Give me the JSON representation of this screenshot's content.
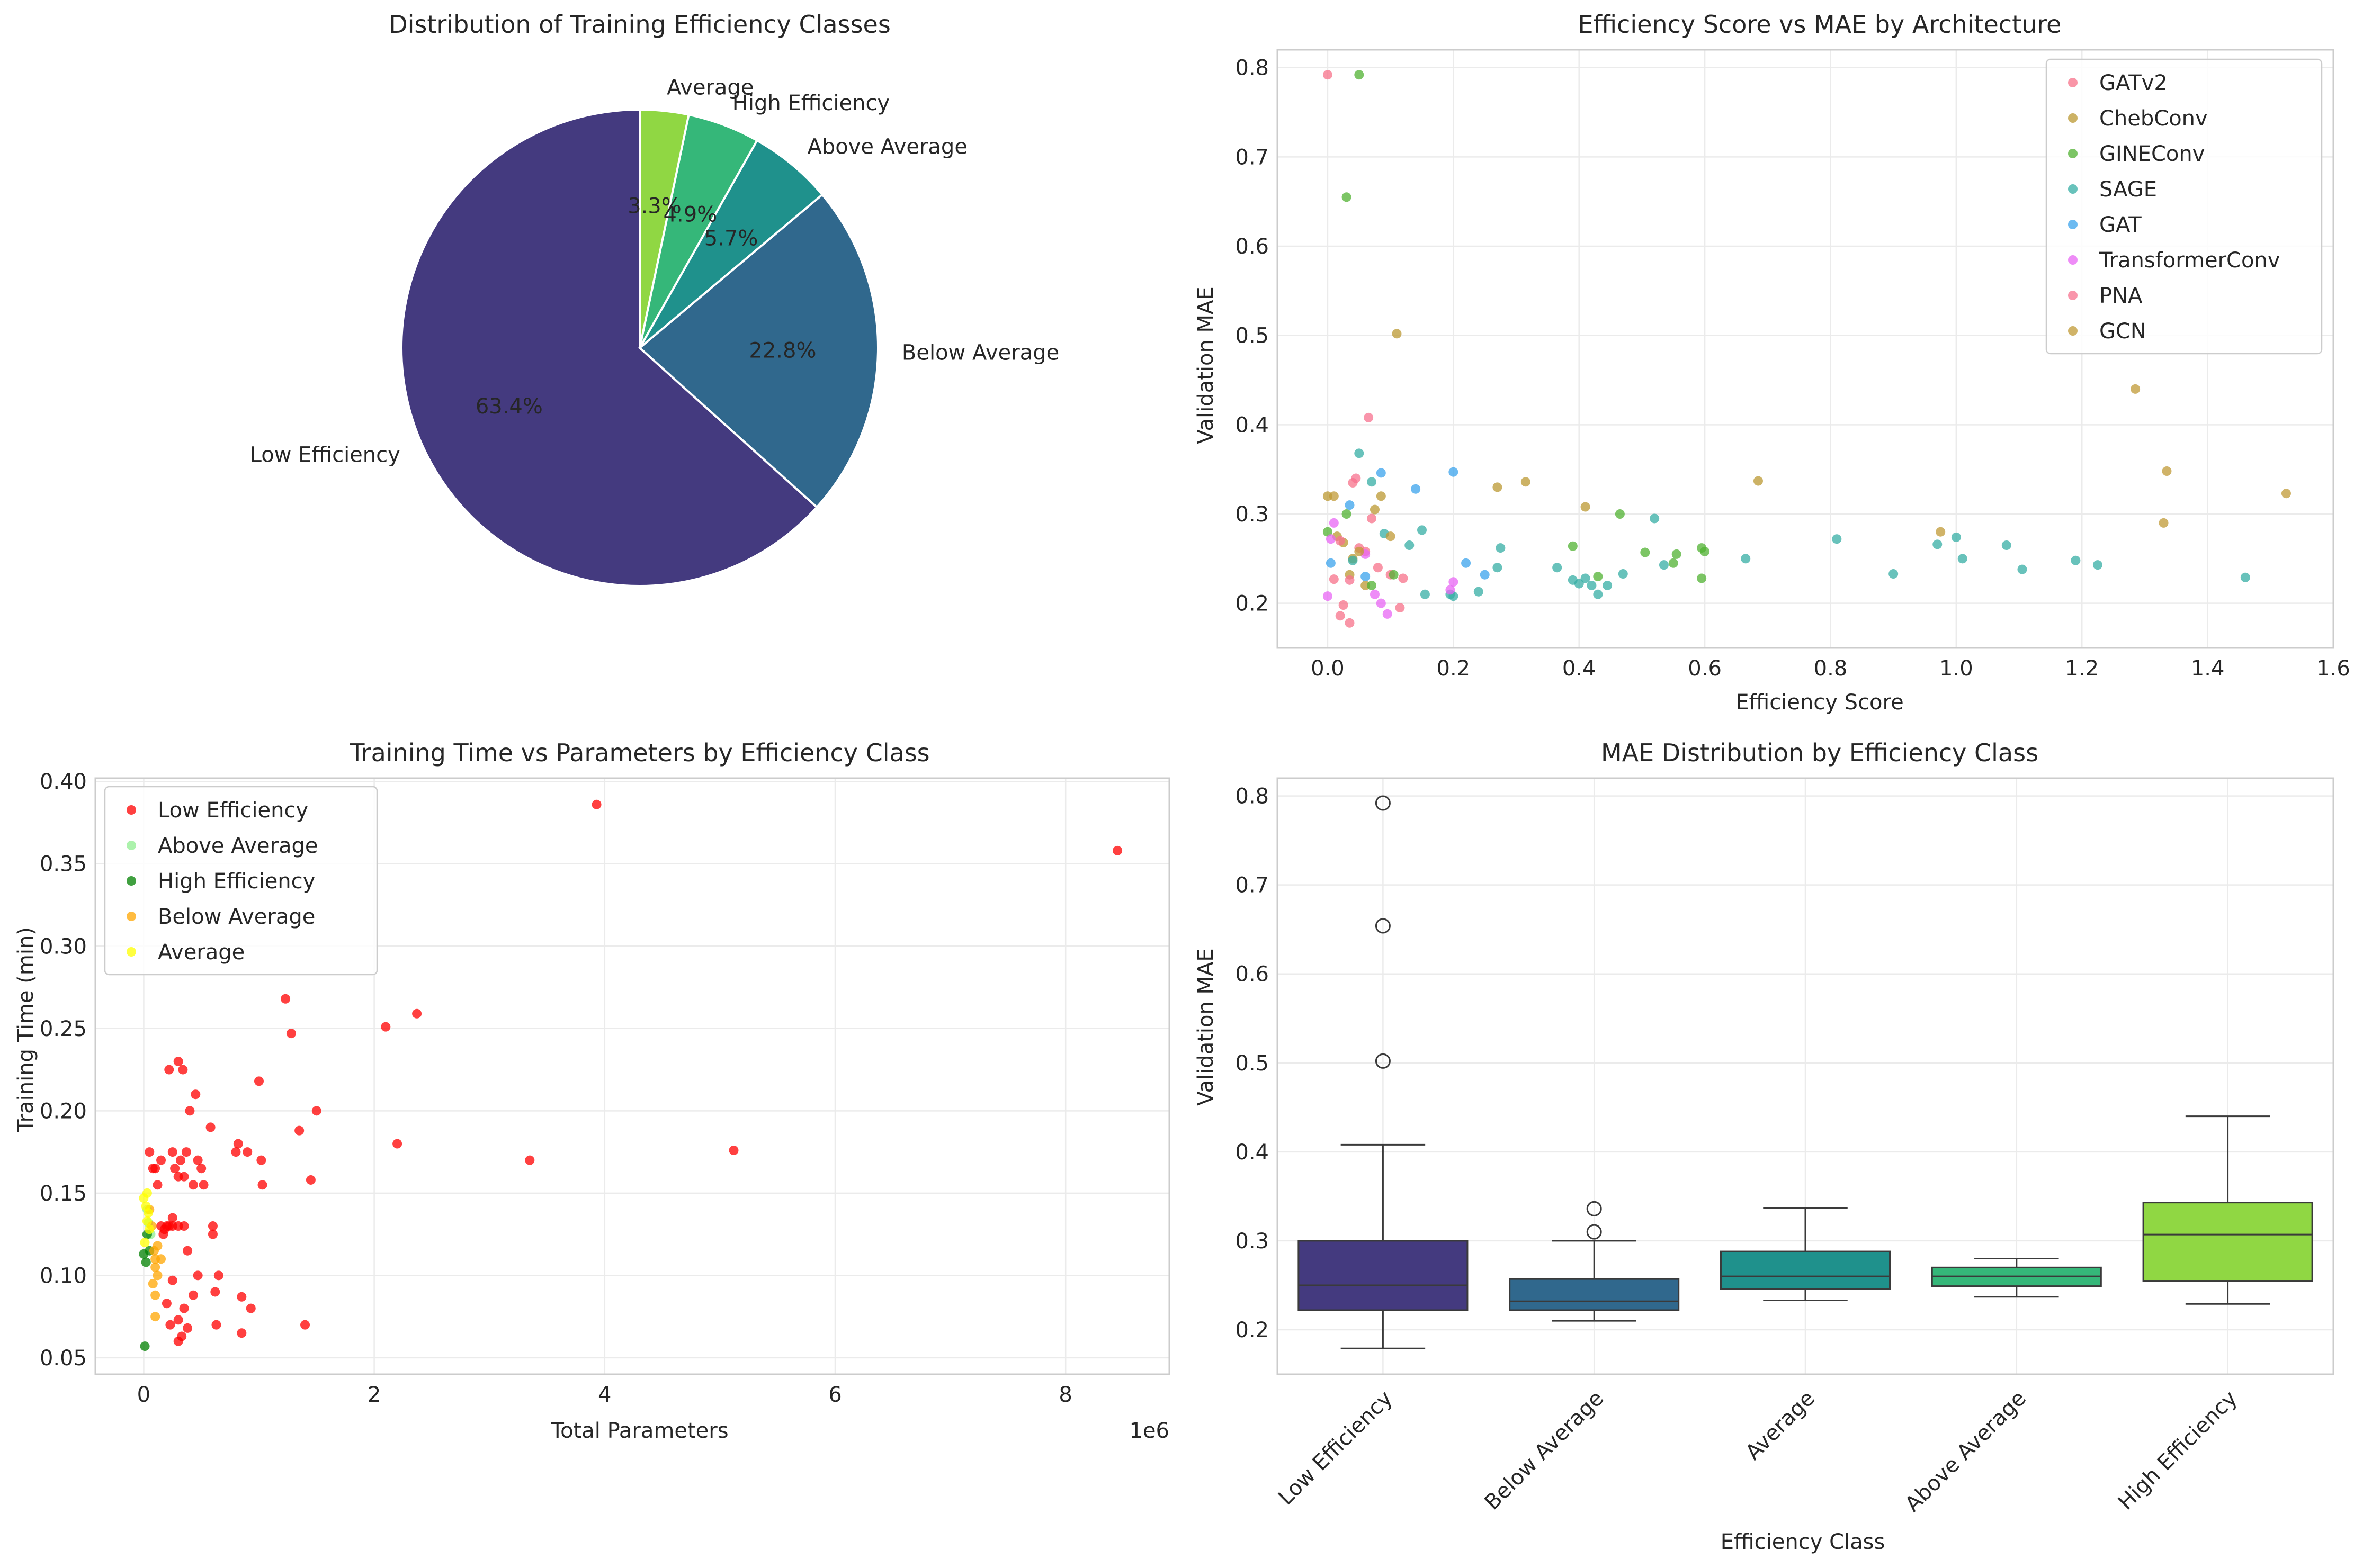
{
  "chart_data": [
    {
      "type": "pie",
      "title": "Distribution of Training Efficiency Classes",
      "slices": [
        {
          "label": "Low Efficiency",
          "value": 63.4,
          "pct_label": "63.4%",
          "color": "#443a7f"
        },
        {
          "label": "Below Average",
          "value": 22.8,
          "pct_label": "22.8%",
          "color": "#30688d"
        },
        {
          "label": "Above Average",
          "value": 5.7,
          "pct_label": "5.7%",
          "color": "#1f918c"
        },
        {
          "label": "High Efficiency",
          "value": 4.9,
          "pct_label": "4.9%",
          "color": "#35b779"
        },
        {
          "label": "Average",
          "value": 3.3,
          "pct_label": "3.3%",
          "color": "#90d743"
        }
      ]
    },
    {
      "type": "scatter",
      "title": "Efficiency Score vs MAE by Architecture",
      "xlabel": "Efficiency Score",
      "ylabel": "Validation MAE",
      "xlim": [
        -0.08,
        1.6
      ],
      "ylim": [
        0.15,
        0.82
      ],
      "xticks": [
        0.0,
        0.2,
        0.4,
        0.6,
        0.8,
        1.0,
        1.2,
        1.4,
        1.6
      ],
      "xtick_labels": [
        "0.0",
        "0.2",
        "0.4",
        "0.6",
        "0.8",
        "1.0",
        "1.2",
        "1.4",
        "1.6"
      ],
      "yticks": [
        0.2,
        0.3,
        0.4,
        0.5,
        0.6,
        0.7,
        0.8
      ],
      "ytick_labels": [
        "0.2",
        "0.3",
        "0.4",
        "0.5",
        "0.6",
        "0.7",
        "0.8"
      ],
      "grid": true,
      "legend_position": "top-right",
      "series": [
        {
          "name": "GATv2",
          "color": "#f77189",
          "points": [
            [
              0.0,
              0.792
            ],
            [
              0.01,
              0.227
            ],
            [
              0.02,
              0.186
            ],
            [
              0.025,
              0.198
            ],
            [
              0.035,
              0.178
            ],
            [
              0.04,
              0.335
            ],
            [
              0.05,
              0.262
            ],
            [
              0.06,
              0.258
            ],
            [
              0.07,
              0.295
            ],
            [
              0.08,
              0.24
            ],
            [
              0.1,
              0.232
            ],
            [
              0.115,
              0.195
            ],
            [
              0.12,
              0.228
            ]
          ]
        },
        {
          "name": "ChebConv",
          "color": "#bb9832",
          "points": [
            [
              0.0,
              0.32
            ],
            [
              0.015,
              0.275
            ],
            [
              0.025,
              0.268
            ],
            [
              0.035,
              0.232
            ],
            [
              0.04,
              0.25
            ],
            [
              0.06,
              0.22
            ],
            [
              0.075,
              0.305
            ],
            [
              0.085,
              0.32
            ],
            [
              0.11,
              0.502
            ],
            [
              0.27,
              0.33
            ],
            [
              0.315,
              0.336
            ],
            [
              0.41,
              0.308
            ],
            [
              0.685,
              0.337
            ]
          ]
        },
        {
          "name": "GINEConv",
          "color": "#50b131",
          "points": [
            [
              0.0,
              0.28
            ],
            [
              0.03,
              0.655
            ],
            [
              0.05,
              0.792
            ],
            [
              0.03,
              0.3
            ],
            [
              0.07,
              0.22
            ],
            [
              0.105,
              0.232
            ],
            [
              0.39,
              0.264
            ],
            [
              0.43,
              0.23
            ],
            [
              0.465,
              0.3
            ],
            [
              0.505,
              0.257
            ],
            [
              0.555,
              0.255
            ],
            [
              0.595,
              0.262
            ],
            [
              0.6,
              0.258
            ],
            [
              0.595,
              0.228
            ],
            [
              0.55,
              0.245
            ]
          ]
        },
        {
          "name": "SAGE",
          "color": "#36ada4",
          "points": [
            [
              0.04,
              0.248
            ],
            [
              0.05,
              0.368
            ],
            [
              0.07,
              0.336
            ],
            [
              0.09,
              0.278
            ],
            [
              0.13,
              0.265
            ],
            [
              0.155,
              0.21
            ],
            [
              0.15,
              0.282
            ],
            [
              0.195,
              0.21
            ],
            [
              0.2,
              0.208
            ],
            [
              0.24,
              0.213
            ],
            [
              0.27,
              0.24
            ],
            [
              0.275,
              0.262
            ],
            [
              0.365,
              0.24
            ],
            [
              0.39,
              0.226
            ],
            [
              0.4,
              0.222
            ],
            [
              0.41,
              0.228
            ],
            [
              0.42,
              0.22
            ],
            [
              0.43,
              0.21
            ],
            [
              0.445,
              0.22
            ],
            [
              0.47,
              0.233
            ],
            [
              0.52,
              0.295
            ],
            [
              0.535,
              0.243
            ],
            [
              0.665,
              0.25
            ],
            [
              0.81,
              0.272
            ],
            [
              0.9,
              0.233
            ],
            [
              0.97,
              0.266
            ],
            [
              1.0,
              0.274
            ],
            [
              1.01,
              0.25
            ],
            [
              1.08,
              0.265
            ],
            [
              1.105,
              0.238
            ],
            [
              1.19,
              0.248
            ],
            [
              1.225,
              0.243
            ],
            [
              1.46,
              0.229
            ]
          ]
        },
        {
          "name": "GAT",
          "color": "#3ba3ec",
          "points": [
            [
              0.035,
              0.31
            ],
            [
              0.085,
              0.346
            ],
            [
              0.14,
              0.328
            ],
            [
              0.2,
              0.347
            ],
            [
              0.22,
              0.245
            ],
            [
              0.25,
              0.232
            ],
            [
              0.005,
              0.245
            ],
            [
              0.06,
              0.23
            ]
          ]
        },
        {
          "name": "TransformerConv",
          "color": "#e866f4",
          "points": [
            [
              0.0,
              0.208
            ],
            [
              0.005,
              0.272
            ],
            [
              0.01,
              0.29
            ],
            [
              0.06,
              0.255
            ],
            [
              0.075,
              0.21
            ],
            [
              0.085,
              0.2
            ],
            [
              0.095,
              0.188
            ],
            [
              0.2,
              0.224
            ],
            [
              0.195,
              0.215
            ]
          ]
        },
        {
          "name": "PNA",
          "color": "#f7718f",
          "points": [
            [
              0.045,
              0.34
            ],
            [
              0.065,
              0.408
            ],
            [
              0.02,
              0.27
            ],
            [
              0.035,
              0.226
            ]
          ]
        },
        {
          "name": "GCN",
          "color": "#c09a36",
          "points": [
            [
              0.01,
              0.32
            ],
            [
              0.05,
              0.258
            ],
            [
              0.1,
              0.275
            ],
            [
              0.975,
              0.28
            ],
            [
              1.285,
              0.44
            ],
            [
              1.33,
              0.29
            ],
            [
              1.335,
              0.348
            ],
            [
              1.525,
              0.323
            ]
          ]
        }
      ]
    },
    {
      "type": "scatter",
      "title": "Training Time vs Parameters by Efficiency Class",
      "xlabel": "Total Parameters",
      "ylabel": "Training Time (min)",
      "x_offset_text": "1e6",
      "xlim": [
        -0.42,
        8.9
      ],
      "ylim": [
        0.04,
        0.402
      ],
      "xticks": [
        0,
        2,
        4,
        6,
        8
      ],
      "xtick_labels": [
        "0",
        "2",
        "4",
        "6",
        "8"
      ],
      "yticks": [
        0.05,
        0.1,
        0.15,
        0.2,
        0.25,
        0.3,
        0.35,
        0.4
      ],
      "ytick_labels": [
        "0.05",
        "0.10",
        "0.15",
        "0.20",
        "0.25",
        "0.30",
        "0.35",
        "0.40"
      ],
      "grid": true,
      "legend_position": "top-left",
      "series": [
        {
          "name": "Low Efficiency",
          "color": "#ff0000",
          "points": [
            [
              0.05,
              0.175
            ],
            [
              0.08,
              0.165
            ],
            [
              0.1,
              0.165
            ],
            [
              0.12,
              0.155
            ],
            [
              0.15,
              0.17
            ],
            [
              0.17,
              0.125
            ],
            [
              0.2,
              0.13
            ],
            [
              0.22,
              0.225
            ],
            [
              0.25,
              0.175
            ],
            [
              0.25,
              0.13
            ],
            [
              0.27,
              0.165
            ],
            [
              0.3,
              0.16
            ],
            [
              0.3,
              0.23
            ],
            [
              0.32,
              0.17
            ],
            [
              0.34,
              0.225
            ],
            [
              0.35,
              0.16
            ],
            [
              0.37,
              0.175
            ],
            [
              0.38,
              0.115
            ],
            [
              0.4,
              0.2
            ],
            [
              0.43,
              0.155
            ],
            [
              0.45,
              0.21
            ],
            [
              0.47,
              0.17
            ],
            [
              0.5,
              0.165
            ],
            [
              0.52,
              0.155
            ],
            [
              0.58,
              0.19
            ],
            [
              0.6,
              0.13
            ],
            [
              0.6,
              0.125
            ],
            [
              0.15,
              0.13
            ],
            [
              0.18,
              0.128
            ],
            [
              0.22,
              0.13
            ],
            [
              0.25,
              0.135
            ],
            [
              0.3,
              0.13
            ],
            [
              0.35,
              0.13
            ],
            [
              0.2,
              0.083
            ],
            [
              0.25,
              0.097
            ],
            [
              0.3,
              0.073
            ],
            [
              0.33,
              0.063
            ],
            [
              0.35,
              0.08
            ],
            [
              0.38,
              0.068
            ],
            [
              0.43,
              0.088
            ],
            [
              0.47,
              0.1
            ],
            [
              0.23,
              0.07
            ],
            [
              0.3,
              0.06
            ],
            [
              0.62,
              0.09
            ],
            [
              0.63,
              0.07
            ],
            [
              0.65,
              0.1
            ],
            [
              0.8,
              0.175
            ],
            [
              0.82,
              0.18
            ],
            [
              0.85,
              0.065
            ],
            [
              0.85,
              0.087
            ],
            [
              0.9,
              0.175
            ],
            [
              0.93,
              0.08
            ],
            [
              1.0,
              0.218
            ],
            [
              1.02,
              0.17
            ],
            [
              1.03,
              0.155
            ],
            [
              1.23,
              0.268
            ],
            [
              1.28,
              0.247
            ],
            [
              1.35,
              0.188
            ],
            [
              1.4,
              0.07
            ],
            [
              1.45,
              0.158
            ],
            [
              1.5,
              0.2
            ],
            [
              2.1,
              0.251
            ],
            [
              2.2,
              0.18
            ],
            [
              2.37,
              0.259
            ],
            [
              3.35,
              0.17
            ],
            [
              3.93,
              0.386
            ],
            [
              5.12,
              0.176
            ],
            [
              8.45,
              0.358
            ]
          ]
        },
        {
          "name": "Above Average",
          "color": "#90ee90",
          "points": [
            [
              0.03,
              0.14
            ],
            [
              0.06,
              0.125
            ],
            [
              0.04,
              0.132
            ]
          ]
        },
        {
          "name": "High Efficiency",
          "color": "#008000",
          "points": [
            [
              0.0,
              0.113
            ],
            [
              0.02,
              0.108
            ],
            [
              0.01,
              0.057
            ],
            [
              0.05,
              0.115
            ],
            [
              0.03,
              0.125
            ]
          ]
        },
        {
          "name": "Below Average",
          "color": "#ffa500",
          "points": [
            [
              0.05,
              0.14
            ],
            [
              0.07,
              0.13
            ],
            [
              0.09,
              0.115
            ],
            [
              0.1,
              0.11
            ],
            [
              0.1,
              0.105
            ],
            [
              0.12,
              0.1
            ],
            [
              0.1,
              0.088
            ],
            [
              0.1,
              0.075
            ],
            [
              0.08,
              0.095
            ],
            [
              0.12,
              0.118
            ],
            [
              0.15,
              0.11
            ]
          ]
        },
        {
          "name": "Average",
          "color": "#ffff00",
          "points": [
            [
              0.0,
              0.147
            ],
            [
              0.02,
              0.142
            ],
            [
              0.04,
              0.138
            ],
            [
              0.03,
              0.133
            ],
            [
              0.05,
              0.128
            ],
            [
              0.01,
              0.12
            ],
            [
              0.03,
              0.15
            ]
          ]
        }
      ]
    },
    {
      "type": "box",
      "title": "MAE Distribution by Efficiency Class",
      "xlabel": "Efficiency Class",
      "ylabel": "Validation MAE",
      "ylim": [
        0.15,
        0.82
      ],
      "yticks": [
        0.2,
        0.3,
        0.4,
        0.5,
        0.6,
        0.7,
        0.8
      ],
      "ytick_labels": [
        "0.2",
        "0.3",
        "0.4",
        "0.5",
        "0.6",
        "0.7",
        "0.8"
      ],
      "grid": true,
      "categories": [
        "Low Efficiency",
        "Below Average",
        "Average",
        "Above Average",
        "High Efficiency"
      ],
      "boxes": [
        {
          "category": "Low Efficiency",
          "color": "#443a7f",
          "whisker_low": 0.179,
          "q1": 0.222,
          "median": 0.25,
          "q3": 0.3,
          "whisker_high": 0.408,
          "outliers": [
            0.792,
            0.654,
            0.502
          ]
        },
        {
          "category": "Below Average",
          "color": "#30688d",
          "whisker_low": 0.21,
          "q1": 0.222,
          "median": 0.232,
          "q3": 0.257,
          "whisker_high": 0.3,
          "outliers": [
            0.336,
            0.31
          ]
        },
        {
          "category": "Average",
          "color": "#1f918c",
          "whisker_low": 0.233,
          "q1": 0.246,
          "median": 0.26,
          "q3": 0.288,
          "whisker_high": 0.337,
          "outliers": []
        },
        {
          "category": "Above Average",
          "color": "#35b779",
          "whisker_low": 0.237,
          "q1": 0.249,
          "median": 0.26,
          "q3": 0.27,
          "whisker_high": 0.28,
          "outliers": []
        },
        {
          "category": "High Efficiency",
          "color": "#90d743",
          "whisker_low": 0.229,
          "q1": 0.255,
          "median": 0.307,
          "q3": 0.343,
          "whisker_high": 0.44,
          "outliers": []
        }
      ]
    }
  ]
}
